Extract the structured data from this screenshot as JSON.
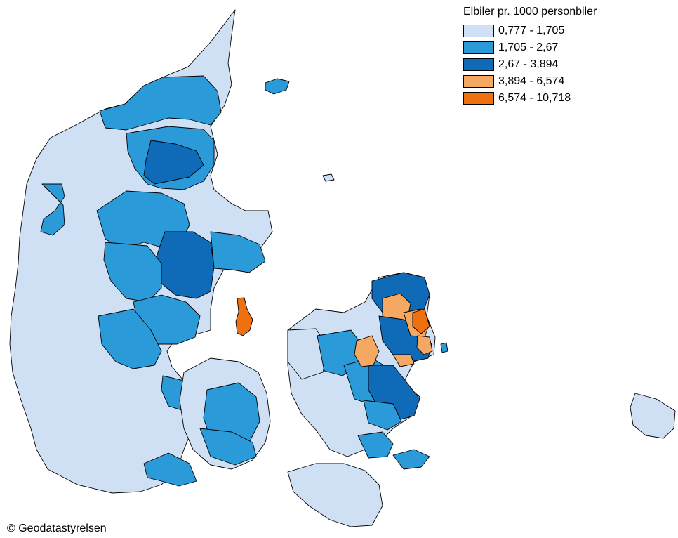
{
  "legend": {
    "title": "Elbiler pr. 1000 personbiler",
    "classes": [
      {
        "label": "0,777 - 1,705",
        "color": "#cfe0f5"
      },
      {
        "label": "1,705 - 2,67",
        "color": "#2a9ad8"
      },
      {
        "label": "2,67 - 3,894",
        "color": "#0f6ab8"
      },
      {
        "label": "3,894 - 6,574",
        "color": "#f5a862"
      },
      {
        "label": "6,574 - 10,718",
        "color": "#ee700f"
      }
    ]
  },
  "credit": "© Geodatastyrelsen"
}
